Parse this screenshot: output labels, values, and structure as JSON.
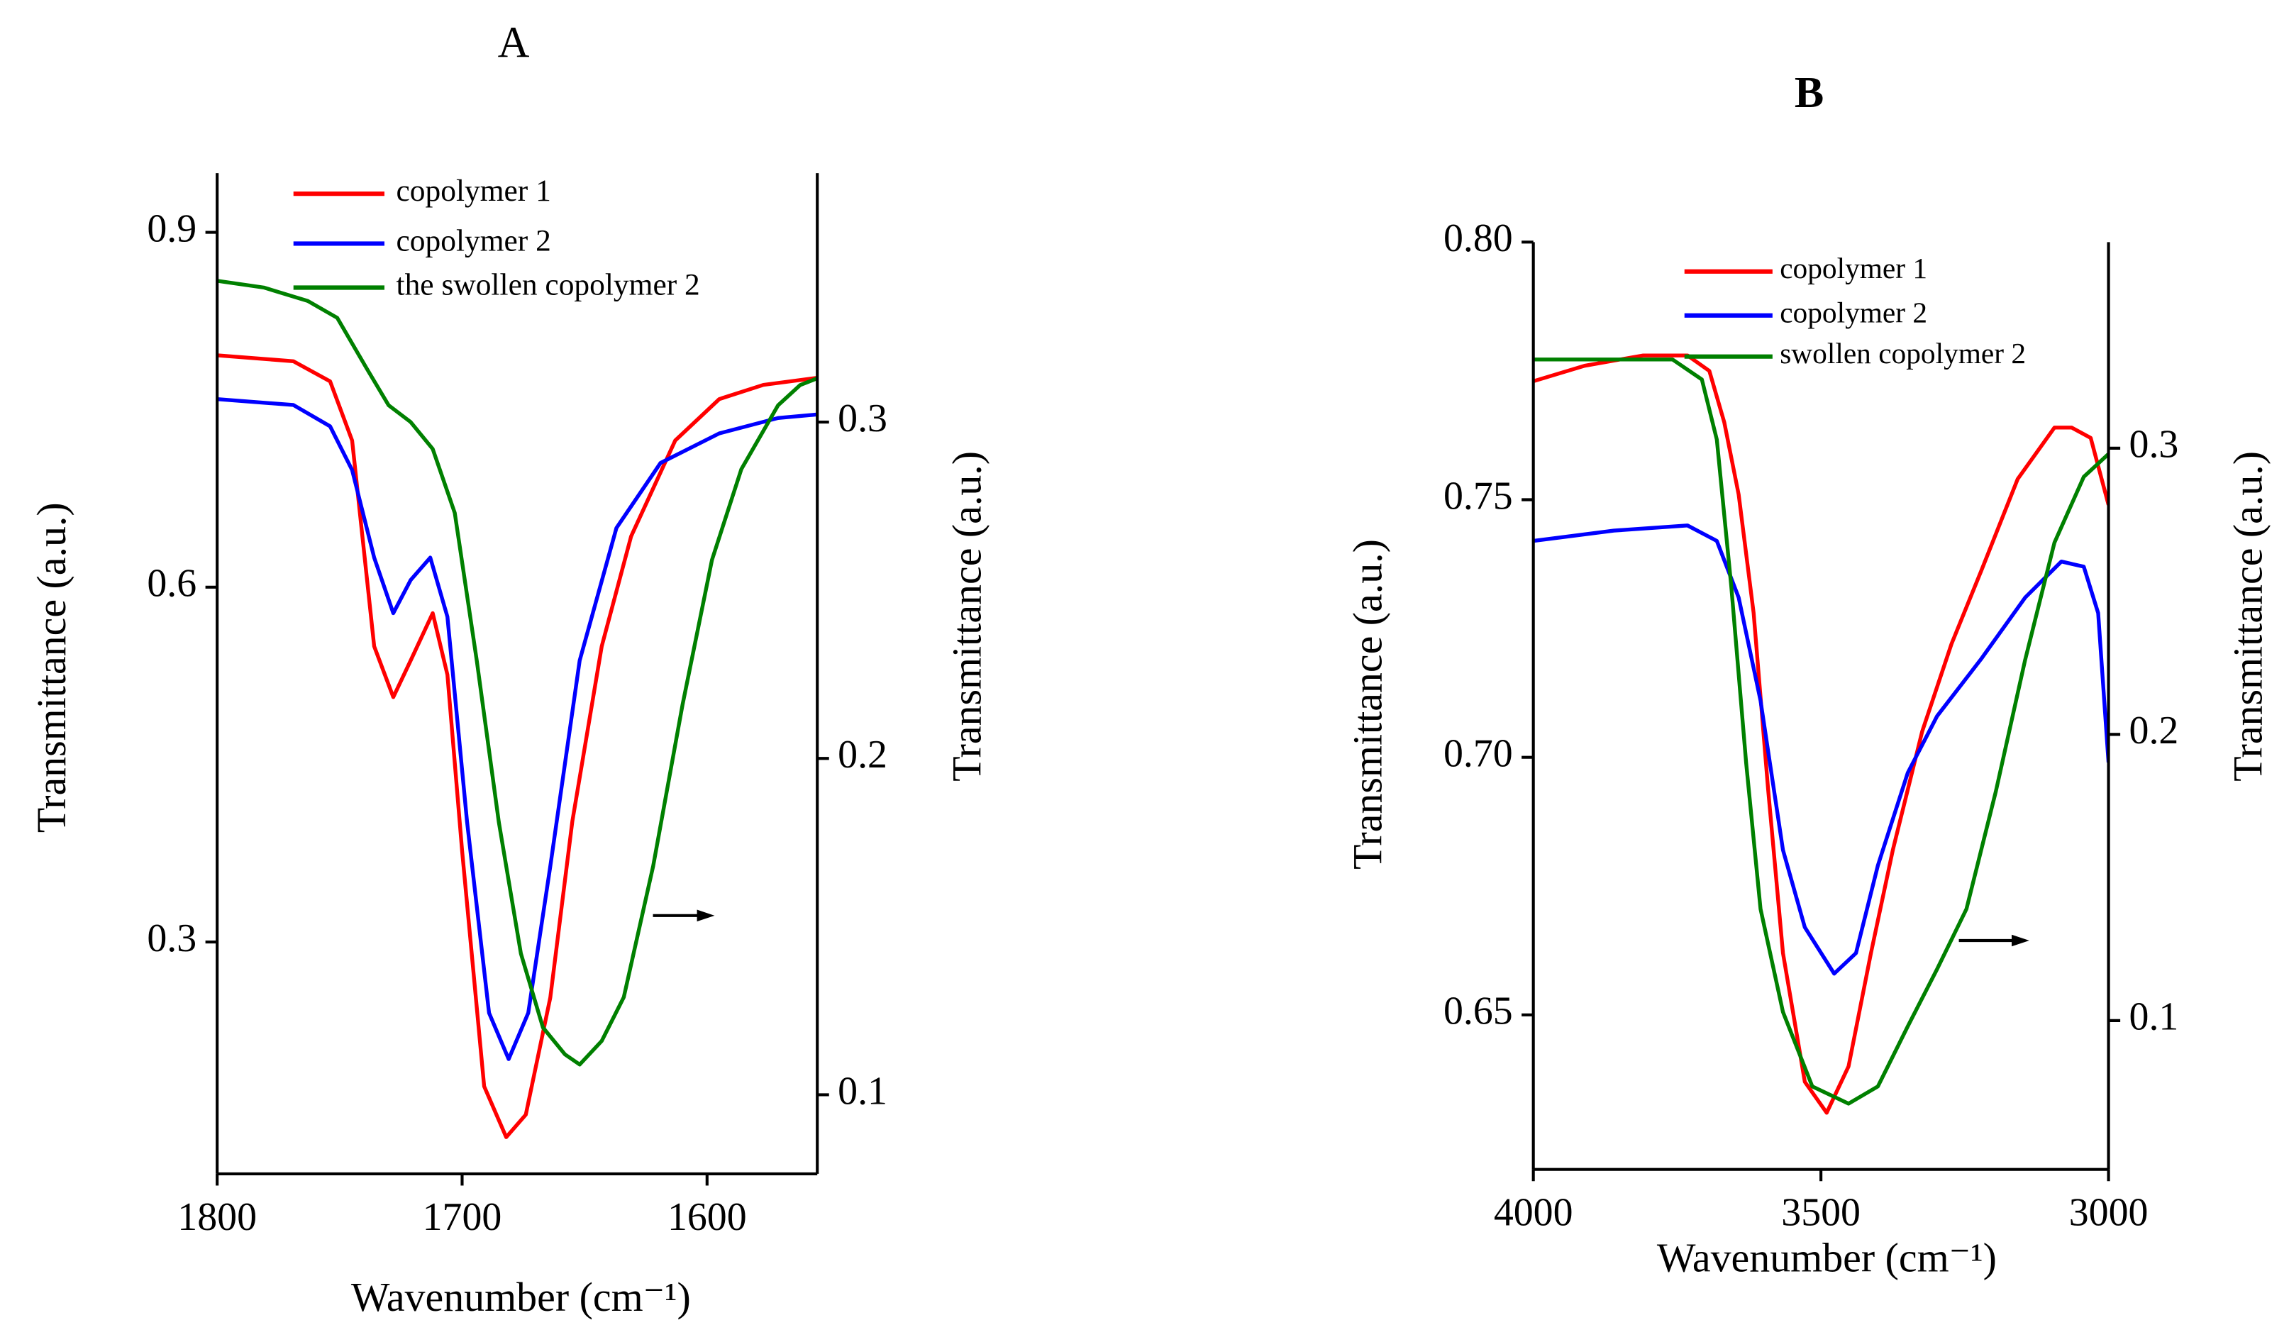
{
  "chart_data": [
    {
      "type": "line",
      "title": "A",
      "xlabel": "Wavenumber (cm⁻¹)",
      "ylabel": "Transmittance (a.u.)",
      "y2label": "Transmittance (a.u.)",
      "xlim": [
        1800,
        1555
      ],
      "ylim": [
        0.104,
        0.95
      ],
      "y2lim": [
        0.0765,
        0.374
      ],
      "xticks": [
        1800,
        1700,
        1600
      ],
      "yticks": [
        0.3,
        0.6,
        0.9
      ],
      "y2ticks": [
        0.1,
        0.2,
        0.3
      ],
      "series": [
        {
          "name": "copolymer 1",
          "color": "#ff0000",
          "x": [
            1800,
            1768.9,
            1753.9,
            1744.9,
            1735.9,
            1728.1,
            1721,
            1712,
            1706,
            1700,
            1691,
            1682,
            1674,
            1664,
            1655,
            1643,
            1631,
            1613,
            1595,
            1577,
            1555
          ],
          "values": [
            0.796,
            0.791,
            0.774,
            0.724,
            0.55,
            0.507,
            0.538,
            0.578,
            0.526,
            0.377,
            0.178,
            0.135,
            0.154,
            0.253,
            0.402,
            0.55,
            0.643,
            0.724,
            0.759,
            0.771,
            0.777
          ]
        },
        {
          "name": "copolymer 2",
          "color": "#0000ff",
          "x": [
            1800,
            1768.9,
            1753.9,
            1744.9,
            1735.9,
            1728.1,
            1721,
            1713,
            1706,
            1698,
            1689,
            1681,
            1673,
            1664,
            1652,
            1637,
            1619,
            1595,
            1571,
            1555
          ],
          "values": [
            0.759,
            0.754,
            0.736,
            0.699,
            0.625,
            0.578,
            0.606,
            0.625,
            0.575,
            0.402,
            0.24,
            0.201,
            0.24,
            0.364,
            0.538,
            0.65,
            0.705,
            0.73,
            0.743,
            0.746
          ]
        },
        {
          "name": "the swollen copolymer 2",
          "color": "#008000",
          "axis": "y2",
          "x": [
            1800,
            1781,
            1763,
            1751,
            1739,
            1730,
            1721,
            1712,
            1703,
            1694,
            1685,
            1676,
            1667,
            1658,
            1652,
            1643,
            1634,
            1622,
            1610,
            1598,
            1586,
            1571,
            1562,
            1555
          ],
          "values": [
            0.342,
            0.34,
            0.336,
            0.331,
            0.316,
            0.305,
            0.3,
            0.292,
            0.273,
            0.229,
            0.181,
            0.142,
            0.12,
            0.112,
            0.109,
            0.116,
            0.129,
            0.168,
            0.216,
            0.259,
            0.286,
            0.305,
            0.311,
            0.313
          ]
        }
      ]
    },
    {
      "type": "line",
      "title": "B",
      "xlabel": "Wavenumber (cm⁻¹)",
      "ylabel": "Transmittance (a.u.)",
      "y2label": "Transmittance (a.u.)",
      "xlim": [
        4000,
        3000
      ],
      "ylim": [
        0.62,
        0.8
      ],
      "y2lim": [
        0.048,
        0.372
      ],
      "xticks": [
        4000,
        3500,
        3000
      ],
      "yticks": [
        {
          "value": 0.8,
          "label": "0.80"
        },
        0.75,
        {
          "value": 0.7,
          "label": "0.70"
        },
        0.65
      ],
      "y2ticks": [
        0.1,
        0.2,
        0.3
      ],
      "series": [
        {
          "name": "copolymer 1",
          "color": "#ff0000",
          "x": [
            4000,
            3911,
            3809,
            3732,
            3694,
            3668,
            3643,
            3617,
            3592,
            3566,
            3528,
            3490,
            3452,
            3413,
            3375,
            3324,
            3273,
            3222,
            3158,
            3094,
            3064,
            3031,
            3000
          ],
          "values": [
            0.773,
            0.776,
            0.778,
            0.778,
            0.775,
            0.765,
            0.751,
            0.728,
            0.694,
            0.662,
            0.637,
            0.631,
            0.64,
            0.662,
            0.682,
            0.705,
            0.722,
            0.736,
            0.754,
            0.764,
            0.764,
            0.762,
            0.749
          ]
        },
        {
          "name": "copolymer 2",
          "color": "#0000ff",
          "x": [
            4000,
            3860,
            3732,
            3681,
            3643,
            3605,
            3566,
            3528,
            3477,
            3439,
            3401,
            3349,
            3298,
            3222,
            3145,
            3082,
            3043,
            3018,
            3000
          ],
          "values": [
            0.742,
            0.744,
            0.745,
            0.742,
            0.731,
            0.711,
            0.682,
            0.667,
            0.658,
            0.662,
            0.679,
            0.697,
            0.708,
            0.719,
            0.731,
            0.738,
            0.737,
            0.728,
            0.699
          ]
        },
        {
          "name": "swollen copolymer 2",
          "color": "#008000",
          "axis": "y2",
          "x": [
            4000,
            3860,
            3758,
            3707,
            3681,
            3656,
            3630,
            3605,
            3566,
            3515,
            3452,
            3401,
            3349,
            3298,
            3247,
            3196,
            3145,
            3094,
            3043,
            3000
          ],
          "values": [
            0.331,
            0.331,
            0.331,
            0.324,
            0.303,
            0.252,
            0.19,
            0.139,
            0.103,
            0.077,
            0.071,
            0.077,
            0.098,
            0.118,
            0.139,
            0.18,
            0.226,
            0.267,
            0.29,
            0.298
          ]
        }
      ]
    }
  ]
}
